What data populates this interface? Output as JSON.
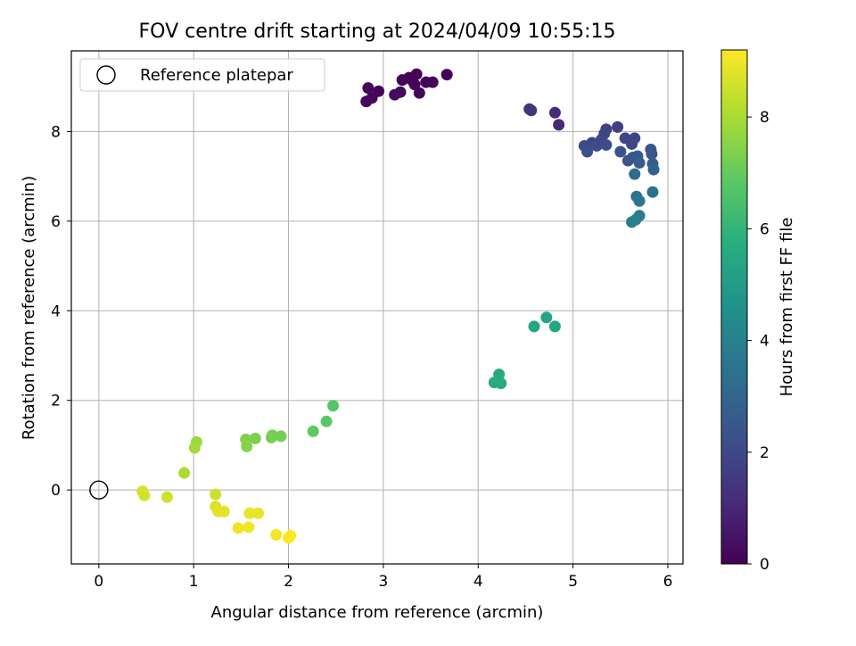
{
  "chart_data": {
    "type": "scatter",
    "title": "FOV centre drift starting at 2024/04/09 10:55:15",
    "xlabel": "Angular distance from reference (arcmin)",
    "ylabel": "Rotation from reference (arcmin)",
    "xlim": [
      -0.29,
      6.16
    ],
    "ylim": [
      -1.65,
      9.8
    ],
    "xticks": [
      "0",
      "1",
      "2",
      "3",
      "4",
      "5",
      "6"
    ],
    "yticks": [
      "0",
      "2",
      "4",
      "6",
      "8"
    ],
    "grid": true,
    "legend": {
      "position": "top-left",
      "entries": [
        "Reference platepar"
      ]
    },
    "reference": {
      "x": 0,
      "y": 0
    },
    "colorbar": {
      "label": "Hours from first FF file",
      "range": [
        0,
        9.2
      ],
      "ticks": [
        "0",
        "2",
        "4",
        "6",
        "8"
      ],
      "colormap": "viridis"
    },
    "points": [
      {
        "x": 2.82,
        "y": 8.67,
        "c": 0.2
      },
      {
        "x": 2.88,
        "y": 8.75,
        "c": 0.2
      },
      {
        "x": 2.84,
        "y": 8.97,
        "c": 0.15
      },
      {
        "x": 2.95,
        "y": 8.9,
        "c": 0.1
      },
      {
        "x": 3.12,
        "y": 8.82,
        "c": 0.3
      },
      {
        "x": 3.18,
        "y": 8.88,
        "c": 0.3
      },
      {
        "x": 3.2,
        "y": 9.15,
        "c": 0.1
      },
      {
        "x": 3.27,
        "y": 9.2,
        "c": 0.05
      },
      {
        "x": 3.35,
        "y": 9.28,
        "c": 0.05
      },
      {
        "x": 3.33,
        "y": 9.05,
        "c": 0.1
      },
      {
        "x": 3.38,
        "y": 8.86,
        "c": 0.2
      },
      {
        "x": 3.45,
        "y": 9.1,
        "c": 0.1
      },
      {
        "x": 3.52,
        "y": 9.1,
        "c": 0.15
      },
      {
        "x": 3.67,
        "y": 9.27,
        "c": 0.05
      },
      {
        "x": 3.3,
        "y": 9.15,
        "c": 0.1
      },
      {
        "x": 4.54,
        "y": 8.5,
        "c": 1.35
      },
      {
        "x": 4.56,
        "y": 8.47,
        "c": 1.4
      },
      {
        "x": 4.81,
        "y": 8.42,
        "c": 1.1
      },
      {
        "x": 4.85,
        "y": 8.15,
        "c": 1.05
      },
      {
        "x": 5.12,
        "y": 7.68,
        "c": 2.1
      },
      {
        "x": 5.15,
        "y": 7.55,
        "c": 2.2
      },
      {
        "x": 5.2,
        "y": 7.75,
        "c": 2.0
      },
      {
        "x": 5.25,
        "y": 7.68,
        "c": 2.15
      },
      {
        "x": 5.3,
        "y": 7.82,
        "c": 1.9
      },
      {
        "x": 5.33,
        "y": 7.95,
        "c": 2.0
      },
      {
        "x": 5.35,
        "y": 8.05,
        "c": 1.85
      },
      {
        "x": 5.35,
        "y": 7.7,
        "c": 2.1
      },
      {
        "x": 5.47,
        "y": 8.1,
        "c": 1.7
      },
      {
        "x": 5.5,
        "y": 7.55,
        "c": 2.3
      },
      {
        "x": 5.55,
        "y": 7.85,
        "c": 1.9
      },
      {
        "x": 5.58,
        "y": 7.35,
        "c": 2.4
      },
      {
        "x": 5.62,
        "y": 7.72,
        "c": 2.0
      },
      {
        "x": 5.65,
        "y": 7.85,
        "c": 1.9
      },
      {
        "x": 5.63,
        "y": 7.42,
        "c": 2.5
      },
      {
        "x": 5.68,
        "y": 7.45,
        "c": 2.6
      },
      {
        "x": 5.7,
        "y": 7.3,
        "c": 2.7
      },
      {
        "x": 5.65,
        "y": 7.05,
        "c": 3.2
      },
      {
        "x": 5.82,
        "y": 7.6,
        "c": 2.4
      },
      {
        "x": 5.83,
        "y": 7.5,
        "c": 2.5
      },
      {
        "x": 5.84,
        "y": 7.28,
        "c": 2.7
      },
      {
        "x": 5.85,
        "y": 7.15,
        "c": 2.9
      },
      {
        "x": 5.84,
        "y": 6.65,
        "c": 3.4
      },
      {
        "x": 5.67,
        "y": 6.55,
        "c": 3.5
      },
      {
        "x": 5.7,
        "y": 6.45,
        "c": 3.6
      },
      {
        "x": 5.7,
        "y": 6.12,
        "c": 3.8
      },
      {
        "x": 5.66,
        "y": 6.03,
        "c": 3.9
      },
      {
        "x": 5.62,
        "y": 5.98,
        "c": 4.0
      },
      {
        "x": 4.72,
        "y": 3.85,
        "c": 5.3
      },
      {
        "x": 4.59,
        "y": 3.65,
        "c": 5.35
      },
      {
        "x": 4.81,
        "y": 3.65,
        "c": 5.4
      },
      {
        "x": 4.22,
        "y": 2.58,
        "c": 5.6
      },
      {
        "x": 4.17,
        "y": 2.4,
        "c": 5.6
      },
      {
        "x": 4.24,
        "y": 2.38,
        "c": 5.65
      },
      {
        "x": 2.47,
        "y": 1.88,
        "c": 6.7
      },
      {
        "x": 2.4,
        "y": 1.53,
        "c": 6.8
      },
      {
        "x": 2.26,
        "y": 1.31,
        "c": 6.9
      },
      {
        "x": 1.83,
        "y": 1.22,
        "c": 7.2
      },
      {
        "x": 1.82,
        "y": 1.17,
        "c": 7.25
      },
      {
        "x": 1.92,
        "y": 1.2,
        "c": 7.2
      },
      {
        "x": 1.65,
        "y": 1.15,
        "c": 7.3
      },
      {
        "x": 1.55,
        "y": 1.13,
        "c": 7.4
      },
      {
        "x": 1.56,
        "y": 0.97,
        "c": 7.5
      },
      {
        "x": 1.03,
        "y": 1.07,
        "c": 7.8
      },
      {
        "x": 1.01,
        "y": 0.94,
        "c": 7.9
      },
      {
        "x": 0.9,
        "y": 0.38,
        "c": 8.0
      },
      {
        "x": 0.46,
        "y": -0.03,
        "c": 8.6
      },
      {
        "x": 0.48,
        "y": -0.12,
        "c": 8.6
      },
      {
        "x": 0.72,
        "y": -0.16,
        "c": 8.5
      },
      {
        "x": 1.23,
        "y": -0.1,
        "c": 8.5
      },
      {
        "x": 1.23,
        "y": -0.37,
        "c": 8.7
      },
      {
        "x": 1.26,
        "y": -0.48,
        "c": 8.8
      },
      {
        "x": 1.32,
        "y": -0.48,
        "c": 8.8
      },
      {
        "x": 1.59,
        "y": -0.52,
        "c": 8.9
      },
      {
        "x": 1.68,
        "y": -0.52,
        "c": 8.9
      },
      {
        "x": 1.47,
        "y": -0.85,
        "c": 9.0
      },
      {
        "x": 1.58,
        "y": -0.83,
        "c": 9.0
      },
      {
        "x": 1.87,
        "y": -1.0,
        "c": 9.1
      },
      {
        "x": 2.0,
        "y": -1.07,
        "c": 9.15
      },
      {
        "x": 2.02,
        "y": -1.02,
        "c": 9.15
      }
    ]
  }
}
